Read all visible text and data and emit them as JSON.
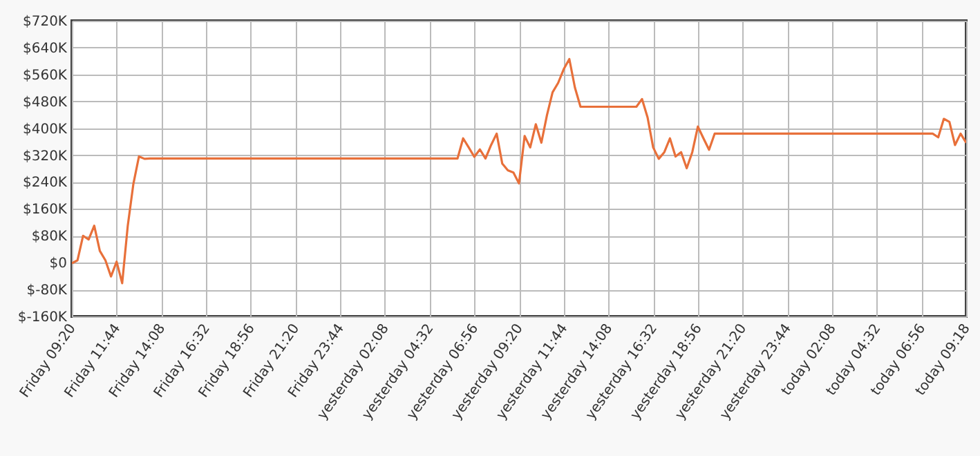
{
  "chart_data": {
    "type": "line",
    "categories": [
      "Friday 09:20",
      null,
      null,
      null,
      null,
      null,
      null,
      null,
      "Friday 11:44",
      null,
      null,
      null,
      null,
      null,
      null,
      null,
      "Friday 14:08",
      null,
      null,
      null,
      null,
      null,
      null,
      null,
      "Friday 16:32",
      null,
      null,
      null,
      null,
      null,
      null,
      null,
      "Friday 18:56",
      null,
      null,
      null,
      null,
      null,
      null,
      null,
      "Friday 21:20",
      null,
      null,
      null,
      null,
      null,
      null,
      null,
      "Friday 23:44",
      null,
      null,
      null,
      null,
      null,
      null,
      null,
      "yesterday 02:08",
      null,
      null,
      null,
      null,
      null,
      null,
      null,
      "yesterday 04:32",
      null,
      null,
      null,
      null,
      null,
      null,
      null,
      "yesterday 06:56",
      null,
      null,
      null,
      null,
      null,
      null,
      null,
      "yesterday 09:20",
      null,
      null,
      null,
      null,
      null,
      null,
      null,
      "yesterday 11:44",
      null,
      null,
      null,
      null,
      null,
      null,
      null,
      "yesterday 14:08",
      null,
      null,
      null,
      null,
      null,
      null,
      null,
      "yesterday 16:32",
      null,
      null,
      null,
      null,
      null,
      null,
      null,
      "yesterday 18:56",
      null,
      null,
      null,
      null,
      null,
      null,
      null,
      "yesterday 21:20",
      null,
      null,
      null,
      null,
      null,
      null,
      null,
      "yesterday 23:44",
      null,
      null,
      null,
      null,
      null,
      null,
      null,
      "today 02:08",
      null,
      null,
      null,
      null,
      null,
      null,
      null,
      "today 04:32",
      null,
      null,
      null,
      null,
      null,
      null,
      null,
      "today 06:56",
      null,
      null,
      null,
      null,
      null,
      null,
      null,
      "today 09:18"
    ],
    "series": [
      {
        "color": "#e8703a",
        "values": [
          -2,
          7,
          80,
          69,
          110,
          35,
          7,
          -41,
          3,
          -61,
          110,
          234,
          316,
          309,
          310,
          310,
          310,
          310,
          310,
          310,
          310,
          310,
          310,
          310,
          310,
          310,
          310,
          310,
          310,
          310,
          310,
          310,
          310,
          310,
          310,
          310,
          310,
          310,
          310,
          310,
          310,
          310,
          310,
          310,
          310,
          310,
          310,
          310,
          310,
          310,
          310,
          310,
          310,
          310,
          310,
          310,
          310,
          310,
          310,
          310,
          310,
          310,
          310,
          310,
          310,
          310,
          310,
          310,
          310,
          310,
          370,
          343,
          315,
          337,
          310,
          350,
          384,
          295,
          275,
          268,
          236,
          377,
          343,
          412,
          357,
          439,
          507,
          535,
          576,
          606,
          521,
          464,
          464,
          464,
          464,
          464,
          464,
          464,
          464,
          464,
          464,
          464,
          487,
          432,
          343,
          309,
          329,
          370,
          316,
          329,
          281,
          329,
          405,
          370,
          336,
          384,
          384,
          384,
          384,
          384,
          384,
          384,
          384,
          384,
          384,
          384,
          384,
          384,
          384,
          384,
          384,
          384,
          384,
          384,
          384,
          384,
          384,
          384,
          384,
          384,
          384,
          384,
          384,
          384,
          384,
          384,
          384,
          384,
          384,
          384,
          384,
          384,
          384,
          384,
          384,
          373,
          428,
          419,
          350,
          384,
          357
        ]
      }
    ],
    "ylim": [
      -160,
      720
    ],
    "yticks": [
      {
        "value": -160,
        "label": "$-160K"
      },
      {
        "value": -80,
        "label": "$-80K"
      },
      {
        "value": 0,
        "label": "$0"
      },
      {
        "value": 80,
        "label": "$80K"
      },
      {
        "value": 160,
        "label": "$160K"
      },
      {
        "value": 240,
        "label": "$240K"
      },
      {
        "value": 320,
        "label": "$320K"
      },
      {
        "value": 400,
        "label": "$400K"
      },
      {
        "value": 480,
        "label": "$480K"
      },
      {
        "value": 560,
        "label": "$560K"
      },
      {
        "value": 640,
        "label": "$640K"
      },
      {
        "value": 720,
        "label": "$720K"
      }
    ],
    "grid": true
  }
}
